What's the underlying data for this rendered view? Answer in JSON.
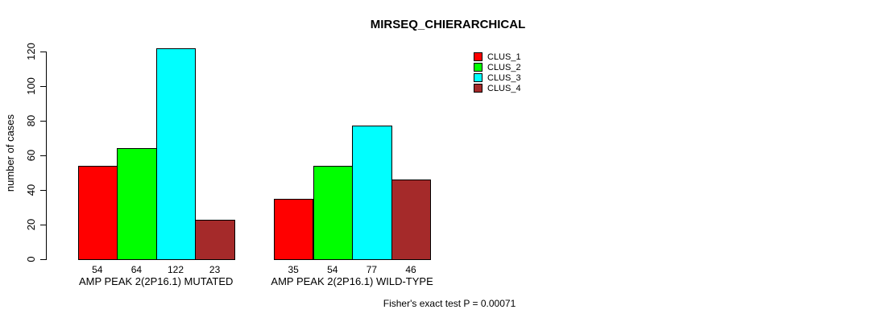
{
  "chart_data": {
    "type": "bar",
    "title": "MIRSEQ_CHIERARCHICAL",
    "ylabel": "number of cases",
    "xlabel": "",
    "ylim": [
      0,
      120
    ],
    "yticks": [
      0,
      20,
      40,
      60,
      80,
      100,
      120
    ],
    "grid": false,
    "legend_position": "top-right",
    "bar_value_labels": true,
    "categories": [
      "AMP PEAK 2(2P16.1) MUTATED",
      "AMP PEAK 2(2P16.1) WILD-TYPE"
    ],
    "series": [
      {
        "name": "CLUS_1",
        "color": "#ff0000",
        "values": [
          54,
          35
        ]
      },
      {
        "name": "CLUS_2",
        "color": "#00ff00",
        "values": [
          64,
          54
        ]
      },
      {
        "name": "CLUS_3",
        "color": "#00ffff",
        "values": [
          122,
          77
        ]
      },
      {
        "name": "CLUS_4",
        "color": "#a52a2a",
        "values": [
          23,
          46
        ]
      }
    ],
    "annotation": "Fisher's exact test P = 0.00071"
  },
  "colors": {
    "axis": "#000000",
    "bar_border": "#000000",
    "background": "#ffffff"
  }
}
